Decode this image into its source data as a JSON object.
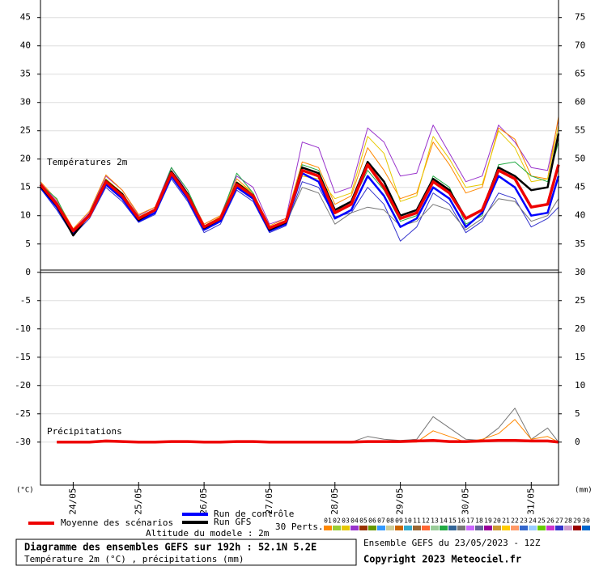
{
  "chart_data": {
    "type": "line",
    "title": "Diagramme des ensembles GEFS sur 192h : 52.1N 5.2E",
    "subtitle": "Température 2m (°C) , précipitations (mm)",
    "run_label": "Ensemble GEFS du 23/05/2023 - 12Z",
    "copyright": "Copyright 2023 Meteociel.fr",
    "altitude": "Altitude du modele : 2m",
    "panel_labels": [
      "Températures 2m",
      "Précipitations"
    ],
    "y_unit": "(°C)",
    "y2_unit": "(mm)",
    "x": [
      0,
      6,
      12,
      18,
      24,
      30,
      36,
      42,
      48,
      54,
      60,
      66,
      72,
      78,
      84,
      90,
      96,
      102,
      108,
      114,
      120,
      126,
      132,
      138,
      144,
      150,
      156,
      162,
      168,
      174,
      180,
      186,
      190
    ],
    "xlim": [
      0,
      190
    ],
    "xticks": [
      {
        "value": 12,
        "label": "24/05"
      },
      {
        "value": 36,
        "label": "25/05"
      },
      {
        "value": 60,
        "label": "26/05"
      },
      {
        "value": 84,
        "label": "27/05"
      },
      {
        "value": 108,
        "label": "28/05"
      },
      {
        "value": 132,
        "label": "29/05"
      },
      {
        "value": 156,
        "label": "30/05"
      },
      {
        "value": 180,
        "label": "31/05"
      }
    ],
    "ylim": [
      -37.6,
      48.1
    ],
    "yticks": [
      45,
      40,
      35,
      30,
      25,
      20,
      15,
      10,
      5,
      0,
      -5,
      -10,
      -15,
      -20,
      -25,
      -30
    ],
    "y2lim": [
      -7.6,
      78.1
    ],
    "y2ticks": [
      75,
      70,
      65,
      60,
      55,
      50,
      45,
      40,
      35,
      30,
      25,
      20,
      15,
      10,
      5,
      0
    ],
    "grid": true,
    "series": [
      {
        "color": "#9933cc",
        "width": 1,
        "values": [
          15.8,
          12.5,
          7.5,
          10.5,
          17,
          14.5,
          10,
          11.5,
          18.5,
          14,
          8.5,
          10,
          17,
          15,
          8.5,
          9.5,
          23,
          22,
          14,
          15,
          25.5,
          23,
          17,
          17.5,
          26,
          21,
          16,
          17,
          26,
          23,
          18.5,
          18,
          27
        ]
      },
      {
        "color": "#ff8800",
        "width": 1,
        "values": [
          16,
          12.8,
          7.7,
          10.8,
          17.2,
          14.5,
          10.2,
          11.5,
          18,
          14,
          8.5,
          10,
          16.5,
          14,
          8.2,
          9.5,
          19.5,
          18.5,
          12,
          13.5,
          22,
          18,
          13,
          14,
          23,
          19,
          14,
          15,
          25.5,
          23.5,
          17,
          16.5,
          27.5
        ]
      },
      {
        "color": "#3333cc",
        "width": 1,
        "values": [
          14.8,
          11,
          6.5,
          9.5,
          15,
          12.5,
          8.8,
          10.2,
          16.5,
          12.5,
          7,
          8.5,
          14.5,
          12.5,
          7,
          8.2,
          16,
          15,
          9.8,
          10.5,
          15,
          12,
          5.5,
          8,
          14,
          12,
          7,
          9,
          14,
          13,
          8,
          9.5,
          11.5
        ]
      },
      {
        "color": "#e6c800",
        "width": 1,
        "values": [
          15.2,
          12,
          7.4,
          10.2,
          16.5,
          14,
          9.8,
          11.2,
          17.5,
          13.5,
          8.2,
          9.8,
          16,
          14,
          8,
          9.2,
          17,
          16.5,
          13,
          14,
          24,
          21,
          12.5,
          13.5,
          24,
          20,
          15,
          15.5,
          25,
          22,
          16,
          16.5,
          26
        ]
      },
      {
        "color": "#22aa44",
        "width": 1,
        "values": [
          15.5,
          13,
          7.2,
          10,
          16,
          13.6,
          9.6,
          11,
          18.5,
          14.5,
          8.2,
          9.6,
          17.5,
          14,
          8,
          9,
          19,
          18,
          11,
          12,
          18,
          14.5,
          9,
          10,
          17,
          15,
          8.5,
          10,
          19,
          19.5,
          17,
          16,
          23
        ]
      },
      {
        "color": "#777777",
        "width": 1,
        "values": [
          15.4,
          12.2,
          7,
          9.8,
          15.8,
          13.2,
          9.5,
          10.8,
          17.2,
          13.2,
          8,
          9.5,
          15.5,
          13.5,
          7.6,
          8.6,
          15,
          14,
          8.5,
          10.5,
          11.5,
          11,
          8.2,
          9,
          12,
          11,
          7.5,
          9.5,
          13,
          12.5,
          9,
          10,
          13
        ]
      },
      {
        "color": "#777777",
        "width": 1,
        "axis": "y2",
        "values": [
          null,
          0,
          0,
          0,
          0,
          0,
          0,
          0,
          0,
          0,
          0,
          0,
          0,
          0,
          0,
          0,
          0,
          0,
          0,
          0,
          1,
          0.5,
          0.3,
          0.5,
          4.5,
          2.5,
          0.5,
          0.3,
          2.5,
          6,
          0.5,
          2.5,
          0
        ]
      },
      {
        "color": "#ff8800",
        "width": 1,
        "axis": "y2",
        "values": [
          null,
          0,
          0,
          0,
          0,
          0,
          0,
          0,
          0,
          0,
          0,
          0,
          0,
          0,
          0,
          0,
          0,
          0,
          0,
          0,
          0,
          0,
          0,
          0,
          2,
          1,
          0,
          0.5,
          1.5,
          4,
          0.5,
          1,
          0
        ]
      },
      {
        "name": "Run de contrôle",
        "color": "#0000ff",
        "width": 2.5,
        "values": [
          15,
          11.5,
          6.8,
          10,
          15.5,
          13,
          9,
          10.5,
          17,
          13,
          7.5,
          9,
          15,
          13,
          7.3,
          8.5,
          17.5,
          16,
          9.5,
          11,
          17,
          13.5,
          8,
          9.5,
          15,
          13,
          8,
          10.5,
          17,
          15,
          10,
          10.5,
          17
        ]
      },
      {
        "name": "Run GFS",
        "color": "#000000",
        "width": 2.5,
        "values": [
          15.2,
          11.8,
          6.5,
          10.2,
          16.2,
          13.8,
          9.2,
          11,
          17.8,
          13.8,
          7.8,
          9.4,
          15.8,
          13.6,
          7.5,
          8.8,
          18.5,
          17.5,
          11,
          12.5,
          19.5,
          16,
          10,
          11,
          16.5,
          14.5,
          9.5,
          11,
          18.5,
          17,
          14.5,
          15,
          24.5
        ]
      },
      {
        "name": "Moyenne des scénarios",
        "color": "#ee0000",
        "width": 3.5,
        "values": [
          15.5,
          12,
          7.3,
          10,
          16,
          13.5,
          9.5,
          11,
          17.5,
          13.5,
          8,
          9.5,
          15.5,
          13.5,
          7.8,
          9,
          18,
          17,
          10.5,
          12,
          19,
          15,
          9.5,
          10.5,
          16,
          14,
          9.5,
          11,
          18,
          16.5,
          11.5,
          12,
          19
        ]
      },
      {
        "color": "#ee0000",
        "width": 3.5,
        "axis": "y2",
        "values": [
          null,
          0,
          0,
          0,
          0.2,
          0.1,
          0,
          0,
          0.1,
          0.1,
          0,
          0,
          0.1,
          0.1,
          0,
          0,
          0,
          0,
          0,
          0,
          0.1,
          0.1,
          0.1,
          0.2,
          0.3,
          0.1,
          0.1,
          0.2,
          0.3,
          0.3,
          0.2,
          0.2,
          0
        ]
      }
    ],
    "perturbations": {
      "label": "30 Perts.",
      "items": [
        {
          "name": "01",
          "color": "#ff8800"
        },
        {
          "name": "02",
          "color": "#99cc33"
        },
        {
          "name": "03",
          "color": "#e6c800"
        },
        {
          "name": "04",
          "color": "#9933cc"
        },
        {
          "name": "05",
          "color": "#993300"
        },
        {
          "name": "06",
          "color": "#669900"
        },
        {
          "name": "07",
          "color": "#3399ff"
        },
        {
          "name": "08",
          "color": "#cccc99"
        },
        {
          "name": "09",
          "color": "#cc6600"
        },
        {
          "name": "10",
          "color": "#33aacc"
        },
        {
          "name": "11",
          "color": "#996633"
        },
        {
          "name": "12",
          "color": "#ff6633"
        },
        {
          "name": "13",
          "color": "#99cc99"
        },
        {
          "name": "14",
          "color": "#22aa44"
        },
        {
          "name": "15",
          "color": "#336699"
        },
        {
          "name": "16",
          "color": "#777777"
        },
        {
          "name": "17",
          "color": "#cc66ff"
        },
        {
          "name": "18",
          "color": "#666699"
        },
        {
          "name": "19",
          "color": "#990099"
        },
        {
          "name": "20",
          "color": "#cc9933"
        },
        {
          "name": "21",
          "color": "#ffcc00"
        },
        {
          "name": "22",
          "color": "#ff9966"
        },
        {
          "name": "23",
          "color": "#3366cc"
        },
        {
          "name": "24",
          "color": "#99ccff"
        },
        {
          "name": "25",
          "color": "#66cc00"
        },
        {
          "name": "26",
          "color": "#cc33cc"
        },
        {
          "name": "27",
          "color": "#3333cc"
        },
        {
          "name": "28",
          "color": "#cc99cc"
        },
        {
          "name": "29",
          "color": "#990000"
        },
        {
          "name": "30",
          "color": "#0066cc"
        }
      ]
    }
  }
}
